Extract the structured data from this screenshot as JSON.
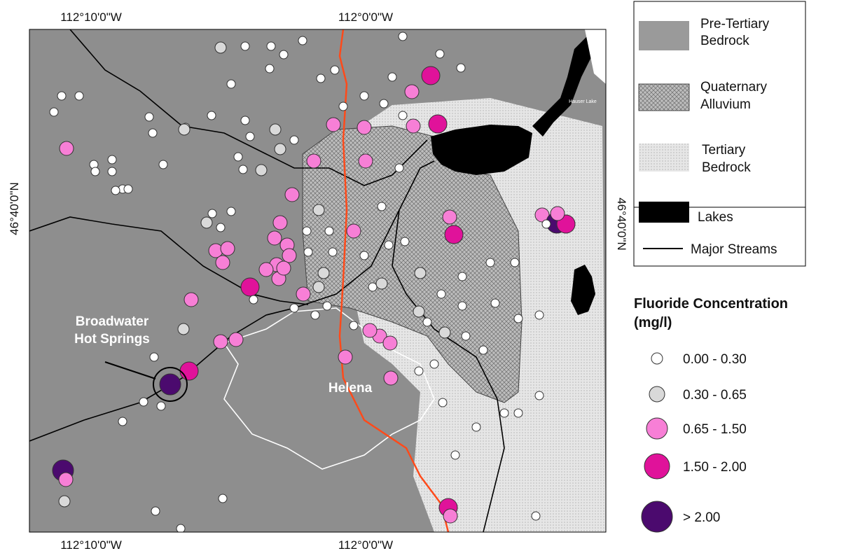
{
  "grid_labels": {
    "top": [
      "112°10'0\"W",
      "112°0'0\"W"
    ],
    "bottom": [
      "112°10'0\"W",
      "112°0'0\"W"
    ],
    "left": "46°40'0\"N",
    "right": "46°40'0\"N"
  },
  "map_labels": {
    "springs": [
      "Broadwater",
      "Hot Springs"
    ],
    "city": "Helena",
    "lake": "Hauser Lake"
  },
  "legend": {
    "units": [
      [
        "Pre-Tertiary",
        "Bedrock"
      ],
      [
        "Quaternary",
        "Alluvium"
      ],
      [
        "Tertiary",
        "Bedrock"
      ],
      [
        "Lakes"
      ],
      [
        "Major Streams"
      ]
    ],
    "fluoride": {
      "title": [
        "Fluoride  Concentration",
        "(mg/l)"
      ],
      "classes": [
        "0.00 - 0.30",
        "0.30 - 0.65",
        "0.65 - 1.50",
        "1.50 - 2.00",
        "> 2.00"
      ]
    }
  }
}
